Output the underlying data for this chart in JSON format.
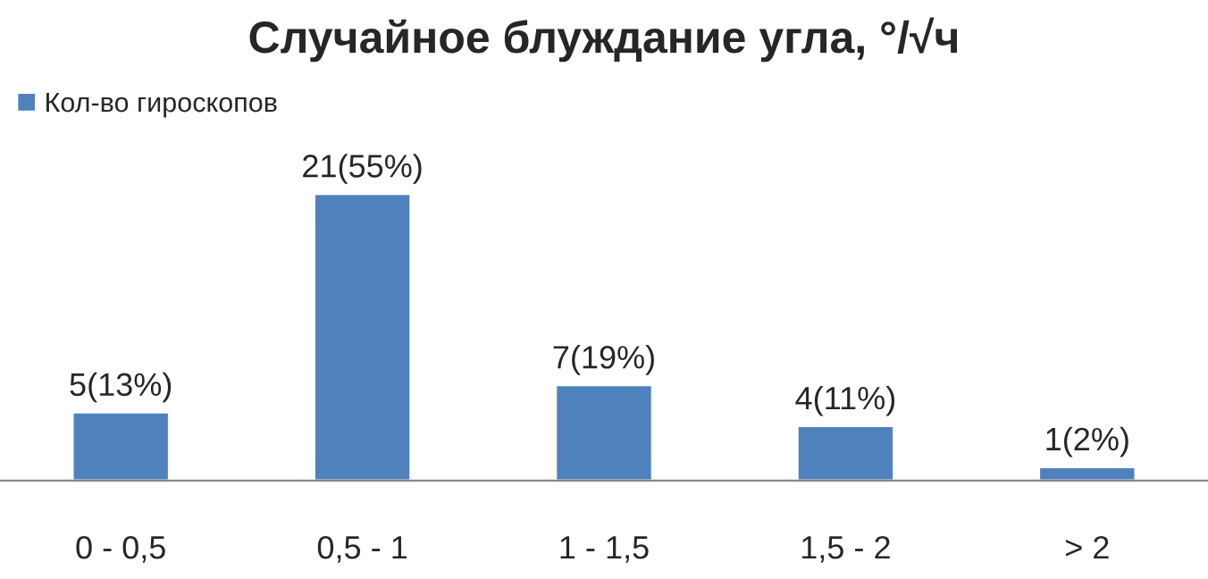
{
  "chart_data": {
    "type": "bar",
    "title": "Случайное блуждание угла, °/√ч",
    "categories": [
      "0 - 0,5",
      "0,5 - 1",
      "1 - 1,5",
      "1,5 - 2",
      "> 2"
    ],
    "series": [
      {
        "name": "Кол-во гироскопов",
        "color": "#4f81bd",
        "values": [
          5,
          21,
          7,
          4,
          1
        ],
        "value_labels": [
          "5(13%)",
          "21(55%)",
          "7(19%)",
          "4(11%)",
          "1(2%)"
        ]
      }
    ],
    "legend": "top left",
    "grid": false
  }
}
